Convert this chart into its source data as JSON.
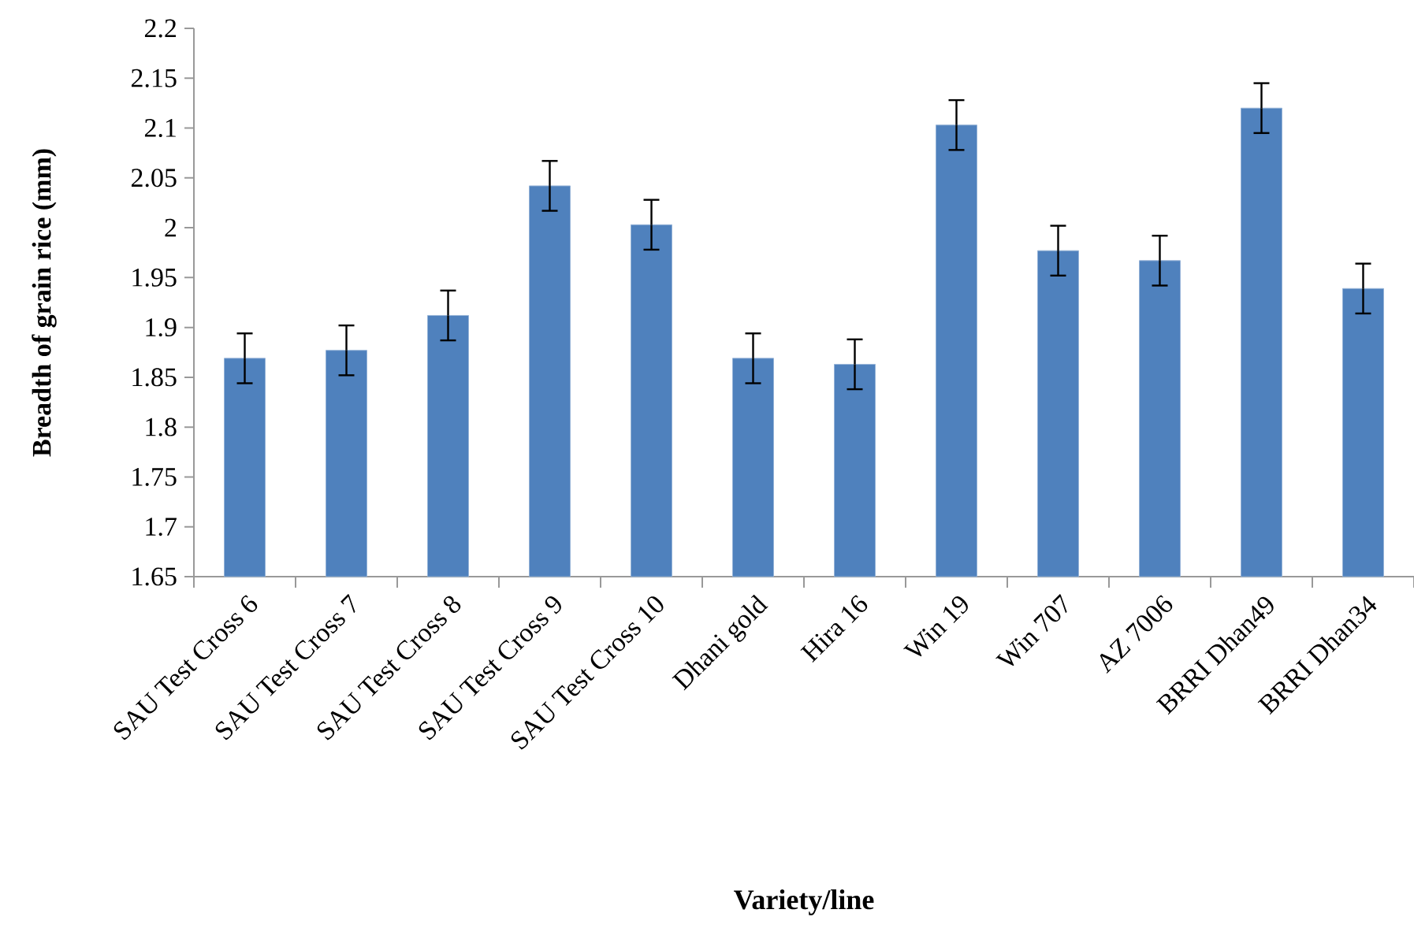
{
  "chart_data": {
    "type": "bar",
    "xlabel": "Variety/line",
    "ylabel": "Breadth of grain rice (mm)",
    "categories": [
      "SAU Test Cross 6",
      "SAU Test Cross 7",
      "SAU Test Cross 8",
      "SAU Test Cross 9",
      "SAU Test Cross 10",
      "Dhani gold",
      "Hira 16",
      "Win 19",
      "Win 707",
      "AZ 7006",
      "BRRI Dhan49",
      "BRRI Dhan34"
    ],
    "values": [
      1.869,
      1.877,
      1.912,
      2.042,
      2.003,
      1.869,
      1.863,
      2.103,
      1.977,
      1.967,
      2.12,
      1.939
    ],
    "errors": [
      0.025,
      0.025,
      0.025,
      0.025,
      0.025,
      0.025,
      0.025,
      0.025,
      0.025,
      0.025,
      0.025,
      0.025
    ],
    "color": "#4f81bd",
    "ylim": [
      1.65,
      2.2
    ],
    "yticks": [
      1.65,
      1.7,
      1.75,
      1.8,
      1.85,
      1.9,
      1.95,
      2,
      2.05,
      2.1,
      2.15,
      2.2
    ]
  }
}
